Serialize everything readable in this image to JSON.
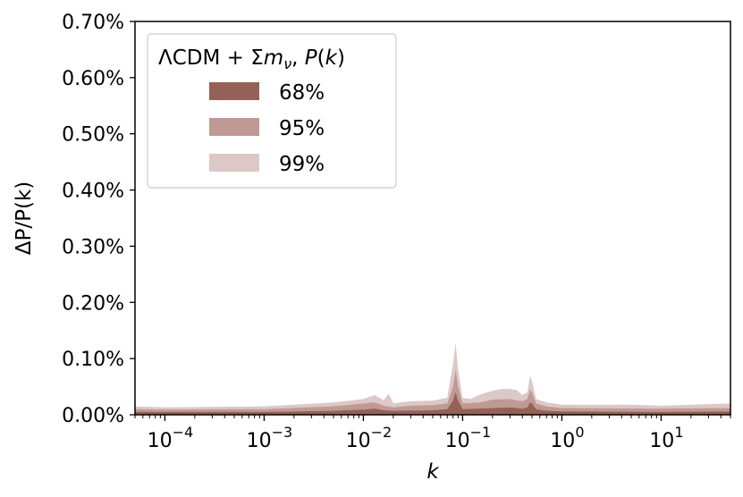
{
  "chart_data": {
    "type": "area",
    "xlabel": "k",
    "ylabel": "ΔP/P(k)",
    "x_scale": "log",
    "xlim": [
      5e-05,
      50
    ],
    "ylim": [
      0,
      0.7
    ],
    "y_tick_labels": [
      "0.00%",
      "0.10%",
      "0.20%",
      "0.30%",
      "0.40%",
      "0.50%",
      "0.60%",
      "0.70%"
    ],
    "y_tick_values": [
      0,
      0.1,
      0.2,
      0.3,
      0.4,
      0.5,
      0.6,
      0.7
    ],
    "x_tick_labels": [
      {
        "base": "10",
        "exp": "−4",
        "value": 0.0001
      },
      {
        "base": "10",
        "exp": "−3",
        "value": 0.001
      },
      {
        "base": "10",
        "exp": "−2",
        "value": 0.01
      },
      {
        "base": "10",
        "exp": "−1",
        "value": 0.1
      },
      {
        "base": "10",
        "exp": "0",
        "value": 1
      },
      {
        "base": "10",
        "exp": "1",
        "value": 10
      }
    ],
    "legend": {
      "title": "ΛCDM  + Σm_ν, P(k)",
      "title_parts": {
        "prefix": "ΛCDM  + Σ",
        "m": "m",
        "nu": "ν",
        "suffix": ", ",
        "P": "P",
        "paren_open": "(",
        "k": "k",
        "paren_close": ")"
      },
      "placement": "top-left"
    },
    "series": [
      {
        "name": "99%",
        "color": "#dcc8c6",
        "x": [
          5e-05,
          0.0001,
          0.001,
          0.005,
          0.01,
          0.013,
          0.016,
          0.018,
          0.02,
          0.03,
          0.05,
          0.07,
          0.08,
          0.085,
          0.09,
          0.1,
          0.12,
          0.15,
          0.2,
          0.25,
          0.3,
          0.35,
          0.4,
          0.45,
          0.48,
          0.5,
          0.55,
          0.7,
          1,
          5,
          10,
          50
        ],
        "values": [
          0.015,
          0.013,
          0.015,
          0.022,
          0.028,
          0.035,
          0.026,
          0.038,
          0.02,
          0.024,
          0.025,
          0.03,
          0.09,
          0.128,
          0.08,
          0.03,
          0.028,
          0.036,
          0.043,
          0.046,
          0.046,
          0.044,
          0.035,
          0.04,
          0.07,
          0.06,
          0.028,
          0.022,
          0.018,
          0.018,
          0.016,
          0.02
        ]
      },
      {
        "name": "95%",
        "color": "#bf9a94",
        "x": [
          5e-05,
          0.0001,
          0.001,
          0.005,
          0.01,
          0.013,
          0.016,
          0.02,
          0.03,
          0.05,
          0.07,
          0.08,
          0.085,
          0.09,
          0.1,
          0.15,
          0.2,
          0.3,
          0.4,
          0.45,
          0.48,
          0.5,
          0.55,
          0.7,
          1,
          10,
          50
        ],
        "values": [
          0.01,
          0.009,
          0.01,
          0.015,
          0.02,
          0.022,
          0.016,
          0.013,
          0.016,
          0.017,
          0.02,
          0.05,
          0.08,
          0.05,
          0.02,
          0.022,
          0.027,
          0.028,
          0.024,
          0.028,
          0.045,
          0.04,
          0.02,
          0.015,
          0.012,
          0.011,
          0.012
        ]
      },
      {
        "name": "68%",
        "color": "#956157",
        "x": [
          5e-05,
          0.0001,
          0.001,
          0.005,
          0.01,
          0.013,
          0.016,
          0.02,
          0.05,
          0.07,
          0.08,
          0.085,
          0.09,
          0.1,
          0.2,
          0.3,
          0.4,
          0.45,
          0.48,
          0.5,
          0.55,
          0.7,
          1,
          10,
          50
        ],
        "values": [
          0.005,
          0.005,
          0.005,
          0.007,
          0.009,
          0.011,
          0.008,
          0.007,
          0.008,
          0.01,
          0.025,
          0.04,
          0.025,
          0.01,
          0.012,
          0.013,
          0.011,
          0.013,
          0.022,
          0.02,
          0.01,
          0.007,
          0.006,
          0.005,
          0.006
        ]
      }
    ],
    "legend_order": [
      "68%",
      "95%",
      "99%"
    ]
  }
}
